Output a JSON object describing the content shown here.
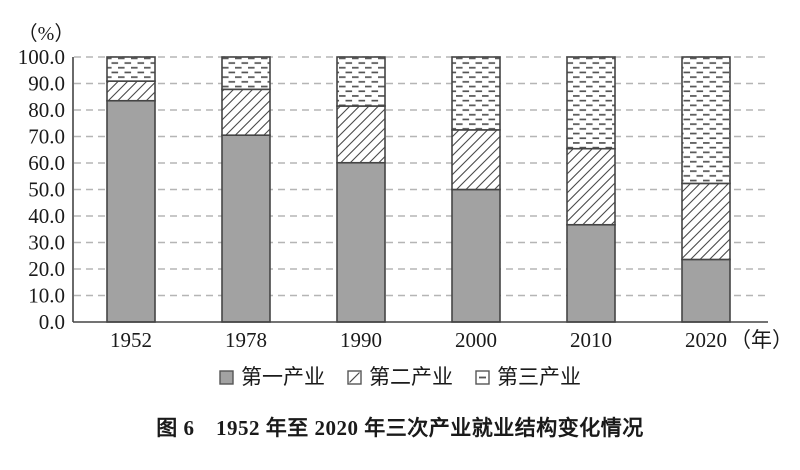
{
  "figure": {
    "caption": "图 6　1952 年至 2020 年三次产业就业结构变化情况"
  },
  "legend": {
    "items": [
      {
        "label": "第一产业",
        "swatch": "solid-gray"
      },
      {
        "label": "第二产业",
        "swatch": "diagonal-hatch"
      },
      {
        "label": "第三产业",
        "swatch": "dash-hatch"
      }
    ]
  },
  "colors": {
    "bar_fill_primary": "#a2a2a2",
    "bar_border": "#454545",
    "hatch_line": "#4a4a4a",
    "dash_mark": "#555555",
    "gridline": "#b5b5b5",
    "axis": "#454545",
    "text": "#1a1a1a",
    "background": "#ffffff"
  },
  "chart_data": {
    "type": "bar",
    "stacked": true,
    "title": "",
    "categories": [
      "1952",
      "1978",
      "1990",
      "2000",
      "2010",
      "2020"
    ],
    "series": [
      {
        "name": "第一产业",
        "style": "solid-gray",
        "values": [
          83.5,
          70.5,
          60.1,
          50.0,
          36.7,
          23.6
        ]
      },
      {
        "name": "第二产业",
        "style": "diagonal-hatch",
        "values": [
          7.4,
          17.3,
          21.4,
          22.5,
          28.7,
          28.7
        ]
      },
      {
        "name": "第三产业",
        "style": "dash-hatch",
        "values": [
          9.1,
          12.2,
          18.5,
          27.5,
          34.6,
          47.7
        ]
      }
    ],
    "ylabel": "（%）",
    "xlabel": "（年）",
    "ylim": [
      0,
      100
    ],
    "ytick_step": 10,
    "ytick_format": "one_decimal",
    "grid": "horizontal-dashed",
    "legend_position": "bottom"
  }
}
